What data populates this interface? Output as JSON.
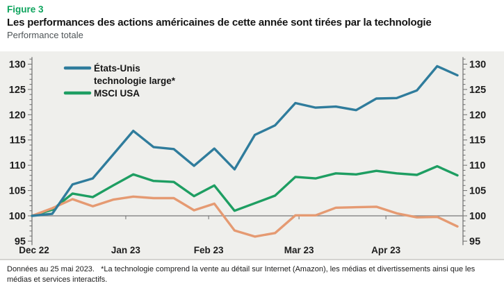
{
  "header": {
    "figure_label": "Figure 3",
    "title": "Les performances des actions américaines de cette année sont tirées par la technologie",
    "subtitle": "Performance totale"
  },
  "footer": {
    "footnote": "Données au 25 mai 2023.   *La technologie comprend la vente au détail sur Internet (Amazon), les médias et divertissements ainsi que les médias et services interactifs."
  },
  "colors": {
    "figure_label_green": "#0ca35c",
    "us_tech_blue": "#2f7c9c",
    "msci_green": "#1e9e62",
    "unlabeled_orange": "#e59a72",
    "chart_background": "#efefec",
    "baseline_gray": "#8b8b8b",
    "axis_gray": "#6e6e6e",
    "tick_label_color": "#1d1d1d"
  },
  "chart_data": {
    "type": "line",
    "title": "Les performances des actions américaines de cette année sont tirées par la technologie",
    "subtitle": "Performance totale",
    "x_unit": "weekly observations, Dec 2022 - 25 May 2023",
    "x_tick_labels": [
      "Dec 22",
      "Jan 23",
      "Feb 23",
      "Mar 23",
      "Apr 23"
    ],
    "x_tick_weeks": [
      0,
      4.63,
      8.72,
      13.18,
      17.47
    ],
    "ylim": [
      95,
      130
    ],
    "y_major_ticks": [
      95,
      100,
      105,
      110,
      115,
      120,
      125,
      130
    ],
    "y_minor_step": 1,
    "baseline": 100,
    "grid": false,
    "legend_position": "inside-top-left",
    "series": [
      {
        "name": "États-Unis technologie large*",
        "legend_lines": [
          "États-Unis",
          "technologie large*"
        ],
        "color": "#2f7c9c",
        "in_legend": true,
        "values": [
          100,
          100.4,
          106.2,
          107.4,
          112.1,
          116.8,
          113.6,
          113.2,
          109.9,
          113.3,
          109.2,
          116,
          117.9,
          122.3,
          121.4,
          121.6,
          120.9,
          123.2,
          123.3,
          124.8,
          129.6,
          127.8
        ]
      },
      {
        "name": "MSCI USA",
        "legend_lines": [
          "MSCI USA"
        ],
        "color": "#1e9e62",
        "in_legend": true,
        "values": [
          100,
          101.2,
          104.4,
          103.7,
          106,
          108.2,
          106.9,
          106.7,
          103.9,
          106,
          101,
          102.5,
          104,
          107.7,
          107.4,
          108.4,
          108.2,
          108.9,
          108.4,
          108.1,
          109.8,
          108
        ]
      },
      {
        "name": "",
        "legend_lines": [],
        "color": "#e59a72",
        "in_legend": false,
        "values": [
          100,
          101.5,
          103.3,
          101.9,
          103.2,
          103.8,
          103.5,
          103.5,
          101.1,
          102.4,
          97.1,
          95.9,
          96.6,
          100.1,
          100.1,
          101.6,
          101.7,
          101.8,
          100.5,
          99.7,
          99.8,
          97.9
        ]
      }
    ]
  }
}
